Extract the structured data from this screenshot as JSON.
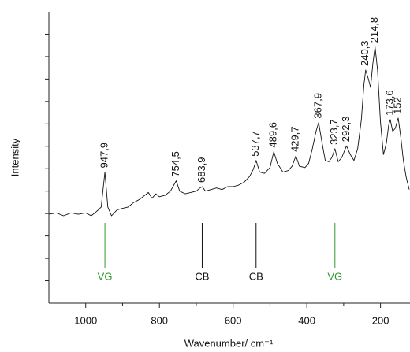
{
  "chart_data": {
    "type": "line",
    "ylabel": "Intensity",
    "xlabel": "Wavenumber/ cm⁻¹",
    "color": "#111111",
    "xlim": [
      1100,
      120
    ],
    "xticks": [
      1000,
      800,
      600,
      400,
      200
    ],
    "xminor_ticks": [
      900,
      700,
      500,
      300
    ],
    "ylim": [
      0,
      13
    ],
    "yticks_unlabeled": [
      1,
      2,
      3,
      4,
      5,
      6,
      7,
      8,
      9,
      10,
      11,
      12
    ],
    "x": [
      1100,
      1080,
      1060,
      1040,
      1020,
      1000,
      985,
      970,
      958,
      947.9,
      940,
      930,
      915,
      900,
      885,
      870,
      855,
      840,
      830,
      820,
      810,
      800,
      785,
      770,
      754.5,
      745,
      730,
      715,
      700,
      690,
      683.9,
      675,
      660,
      645,
      630,
      615,
      600,
      585,
      570,
      555,
      545,
      537.7,
      528,
      515,
      500,
      489.6,
      480,
      465,
      450,
      440,
      429.7,
      420,
      405,
      395,
      385,
      375,
      367.9,
      360,
      350,
      340,
      332,
      323.7,
      315,
      305,
      292.3,
      282,
      272,
      262,
      252,
      245,
      240.3,
      233,
      227,
      221,
      214.8,
      208,
      200,
      192,
      184,
      178,
      173.6,
      167,
      160,
      152,
      145,
      138,
      130,
      122
    ],
    "values": [
      3.97,
      4.03,
      3.9,
      4.03,
      3.97,
      4.03,
      3.9,
      4.1,
      4.29,
      5.85,
      4.29,
      3.9,
      4.16,
      4.23,
      4.29,
      4.49,
      4.62,
      4.81,
      4.94,
      4.68,
      4.88,
      4.75,
      4.81,
      5.0,
      5.46,
      5.0,
      4.88,
      4.94,
      5.0,
      5.14,
      5.2,
      5.0,
      5.07,
      5.14,
      5.07,
      5.2,
      5.2,
      5.27,
      5.4,
      5.66,
      5.98,
      6.37,
      5.85,
      5.79,
      6.05,
      6.76,
      6.24,
      5.85,
      5.92,
      6.11,
      6.57,
      6.11,
      6.05,
      6.24,
      6.89,
      7.67,
      8.06,
      7.28,
      6.37,
      6.31,
      6.5,
      6.89,
      6.31,
      6.5,
      7.02,
      6.63,
      6.37,
      6.89,
      8.19,
      9.75,
      10.4,
      10.01,
      9.62,
      10.66,
      11.44,
      10.4,
      8.06,
      6.63,
      7.15,
      7.93,
      8.19,
      7.67,
      7.8,
      8.26,
      7.41,
      6.37,
      5.59,
      5.07
    ],
    "annotations": [
      {
        "x": 947.9,
        "y": 5.85,
        "text": "947,9"
      },
      {
        "x": 754.5,
        "y": 5.46,
        "text": "754,5"
      },
      {
        "x": 683.9,
        "y": 5.2,
        "text": "683,9"
      },
      {
        "x": 537.7,
        "y": 6.37,
        "text": "537,7"
      },
      {
        "x": 489.6,
        "y": 6.76,
        "text": "489,6"
      },
      {
        "x": 429.7,
        "y": 6.57,
        "text": "429,7"
      },
      {
        "x": 367.9,
        "y": 8.06,
        "text": "367,9"
      },
      {
        "x": 323.7,
        "y": 6.89,
        "text": "323,7"
      },
      {
        "x": 292.3,
        "y": 7.02,
        "text": "292,3"
      },
      {
        "x": 240.3,
        "y": 10.4,
        "text": "240,3"
      },
      {
        "x": 214.8,
        "y": 11.44,
        "text": "214,8"
      },
      {
        "x": 173.6,
        "y": 8.19,
        "text": "173,6"
      },
      {
        "x": 152,
        "y": 8.26,
        "text": "152"
      }
    ],
    "markers": [
      {
        "x": 947.9,
        "text": "VG",
        "color": "#2e9a2e"
      },
      {
        "x": 683.9,
        "text": "CB",
        "color": "#111111"
      },
      {
        "x": 537.7,
        "text": "CB",
        "color": "#111111"
      },
      {
        "x": 323.7,
        "text": "VG",
        "color": "#2e9a2e"
      }
    ]
  }
}
